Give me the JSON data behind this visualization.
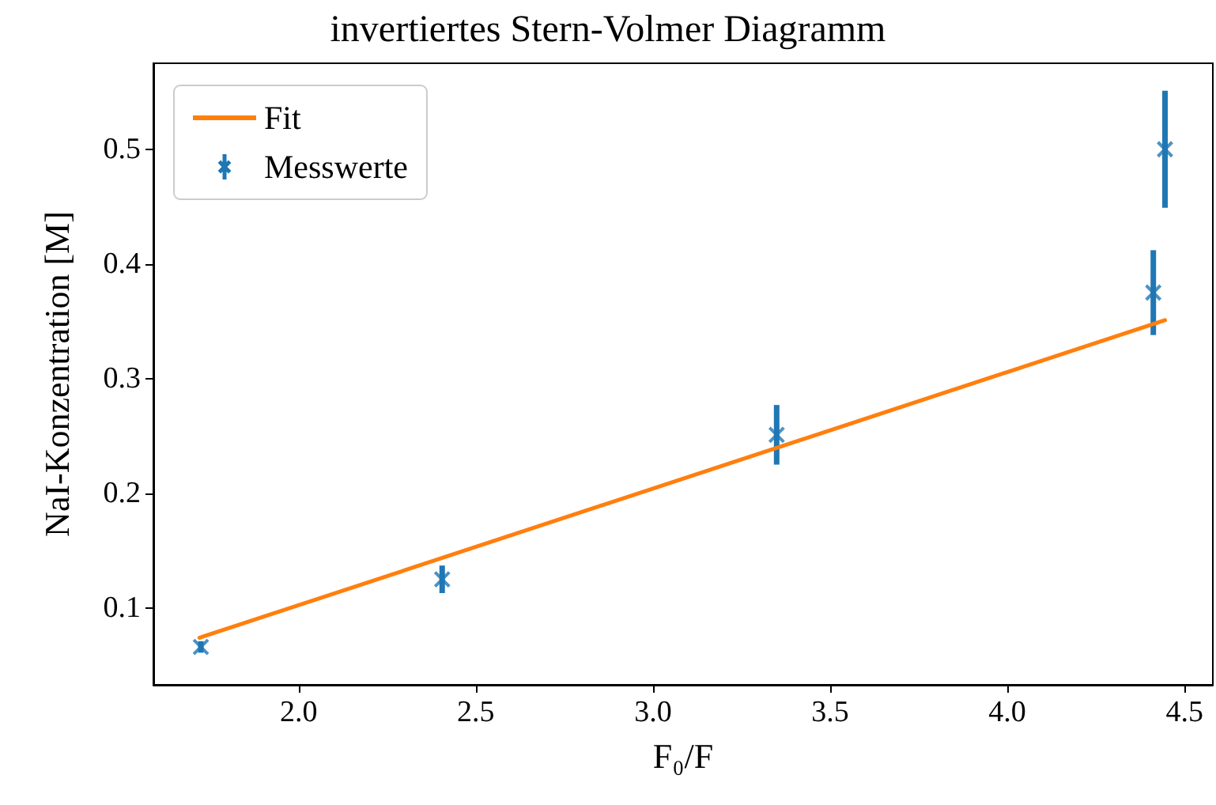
{
  "chart_data": {
    "type": "scatter",
    "title": "invertiertes Stern-Volmer Diagramm",
    "xlabel": "F₀/F",
    "ylabel": "NaI-Konzentration [M]",
    "xlim": [
      1.59,
      4.58
    ],
    "xticks": [
      {
        "value": 2,
        "label": "2.0"
      },
      {
        "value": 2.5,
        "label": "2.5"
      },
      {
        "value": 3,
        "label": "3.0"
      },
      {
        "value": 3.5,
        "label": "3.5"
      },
      {
        "value": 4,
        "label": "4.0"
      },
      {
        "value": 4.5,
        "label": "4.5"
      }
    ],
    "ylim": [
      0.033,
      0.575
    ],
    "yticks": [
      0.1,
      0.2,
      0.3,
      0.4,
      0.5
    ],
    "grid": false,
    "legend": "top left",
    "series": [
      {
        "name": "Fit",
        "type": "line",
        "color": "#ff7f0e",
        "line_style": "solid",
        "x": [
          1.72,
          4.445
        ],
        "values": [
          0.074,
          0.351
        ]
      },
      {
        "name": "Messwerte",
        "color": "#1f77b4",
        "marker": "cross",
        "x": [
          1.724,
          2.405,
          3.349,
          4.412,
          4.445
        ],
        "values": [
          0.066,
          0.125,
          0.251,
          0.375,
          0.5
        ],
        "errors": [
          0.005,
          0.012,
          0.026,
          0.037,
          0.051
        ]
      }
    ]
  }
}
